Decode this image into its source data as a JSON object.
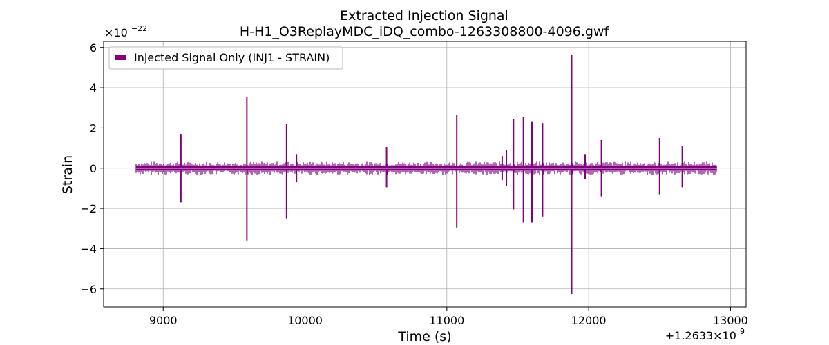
{
  "chart_data": {
    "type": "line",
    "title": "Extracted Injection Signal",
    "subtitle": "H-H1_O3ReplayMDC_iDQ_combo-1263308800-4096.gwf",
    "xlabel": "Time (s)",
    "ylabel": "Strain",
    "x_offset_label": "+1.2633×10",
    "x_offset_exponent": "9",
    "y_multiplier_label": "×10",
    "y_multiplier_exponent": "−22",
    "xlim": [
      8580,
      13110
    ],
    "ylim": [
      -6.9,
      6.3
    ],
    "x_ticks": [
      9000,
      10000,
      11000,
      12000,
      13000
    ],
    "x_tick_labels": [
      "9000",
      "10000",
      "11000",
      "12000",
      "13000"
    ],
    "y_ticks": [
      -6,
      -4,
      -2,
      0,
      2,
      4,
      6
    ],
    "y_tick_labels": [
      "−6",
      "−4",
      "−2",
      "0",
      "2",
      "4",
      "6"
    ],
    "grid": true,
    "legend_position": "top-left",
    "series": [
      {
        "name": "Injected Signal Only (INJ1 - STRAIN)",
        "color": "#800080",
        "x_range": [
          8808,
          12904
        ],
        "baseline_amplitude": 0.25,
        "spikes": [
          {
            "x": 9125,
            "ymax": 1.7,
            "ymin": -1.7
          },
          {
            "x": 9590,
            "ymax": 3.55,
            "ymin": -3.6
          },
          {
            "x": 9870,
            "ymax": 2.2,
            "ymin": -2.5
          },
          {
            "x": 9940,
            "ymax": 0.7,
            "ymin": -0.7
          },
          {
            "x": 10575,
            "ymax": 1.05,
            "ymin": -0.95
          },
          {
            "x": 11070,
            "ymax": 2.65,
            "ymin": -2.95
          },
          {
            "x": 11390,
            "ymax": 0.6,
            "ymin": -0.6
          },
          {
            "x": 11420,
            "ymax": 0.9,
            "ymin": -0.9
          },
          {
            "x": 11470,
            "ymax": 2.45,
            "ymin": -2.05
          },
          {
            "x": 11540,
            "ymax": 2.55,
            "ymin": -2.7
          },
          {
            "x": 11600,
            "ymax": 2.3,
            "ymin": -2.7
          },
          {
            "x": 11675,
            "ymax": 2.25,
            "ymin": -2.4
          },
          {
            "x": 11880,
            "ymax": 5.65,
            "ymin": -6.25
          },
          {
            "x": 11975,
            "ymax": 0.7,
            "ymin": -0.55
          },
          {
            "x": 12090,
            "ymax": 1.4,
            "ymin": -1.4
          },
          {
            "x": 12500,
            "ymax": 1.5,
            "ymin": -1.3
          },
          {
            "x": 12660,
            "ymax": 1.1,
            "ymin": -0.95
          }
        ]
      }
    ]
  }
}
